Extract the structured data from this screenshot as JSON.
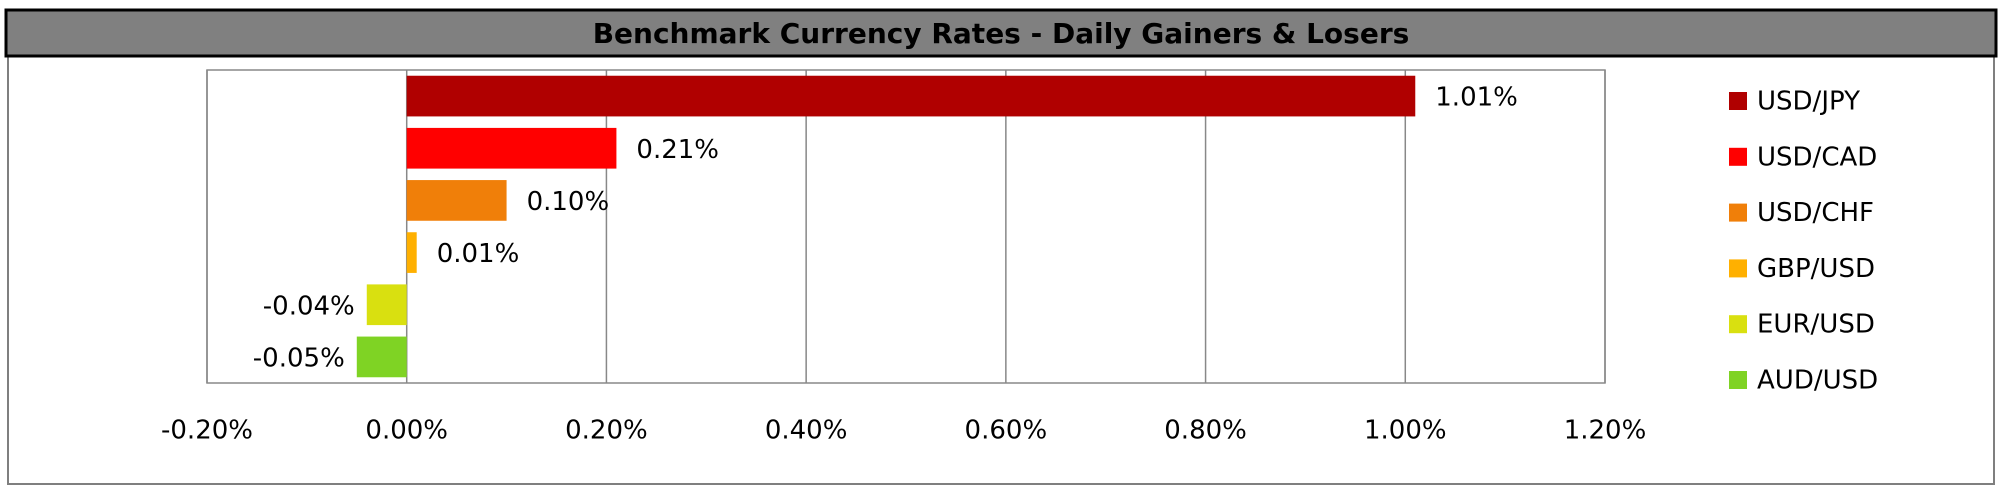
{
  "chart_data": {
    "type": "bar",
    "orientation": "horizontal",
    "title": "Benchmark Currency Rates - Daily Gainers & Losers",
    "categories": [
      "USD/JPY",
      "USD/CAD",
      "USD/CHF",
      "GBP/USD",
      "EUR/USD",
      "AUD/USD"
    ],
    "values": [
      1.01,
      0.21,
      0.1,
      0.01,
      -0.04,
      -0.05
    ],
    "value_labels": [
      "1.01%",
      "0.21%",
      "0.10%",
      "0.01%",
      "-0.04%",
      "-0.05%"
    ],
    "colors": [
      "#b00000",
      "#ff0000",
      "#f07f09",
      "#ffb000",
      "#d9e010",
      "#7fd324"
    ],
    "xlim": [
      -0.2,
      1.2
    ],
    "xticks": [
      {
        "value": -0.2,
        "label": "-0.20%"
      },
      {
        "value": 0,
        "label": "0.00%"
      },
      {
        "value": 0.2,
        "label": "0.20%"
      },
      {
        "value": 0.4,
        "label": "0.40%"
      },
      {
        "value": 0.6,
        "label": "0.60%"
      },
      {
        "value": 0.8,
        "label": "0.80%"
      },
      {
        "value": 1.0,
        "label": "1.00%"
      },
      {
        "value": 1.2,
        "label": "1.20%"
      }
    ],
    "grid": true,
    "legend": "right"
  }
}
